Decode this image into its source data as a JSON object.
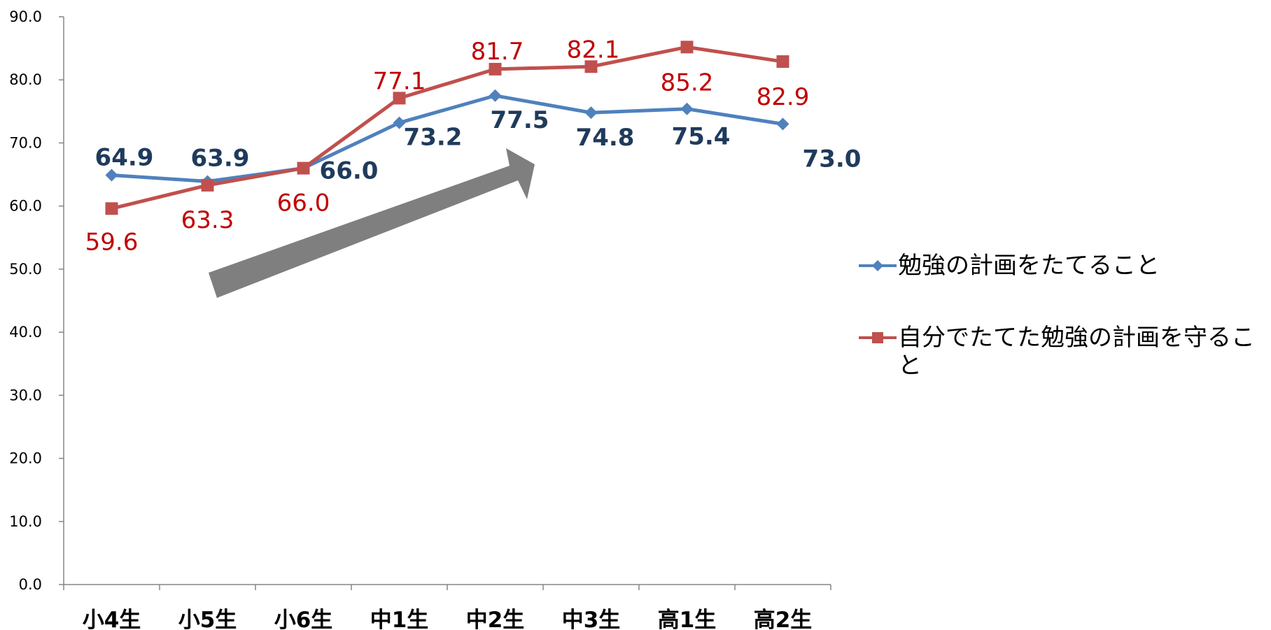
{
  "chart_data": {
    "type": "line",
    "categories": [
      "小4生",
      "小5生",
      "小6生",
      "中1生",
      "中2生",
      "中3生",
      "高1生",
      "高2生"
    ],
    "ylim": [
      0,
      90
    ],
    "yticks": [
      "0.0",
      "10.0",
      "20.0",
      "30.0",
      "40.0",
      "50.0",
      "60.0",
      "70.0",
      "80.0",
      "90.0"
    ],
    "grid": false,
    "legend_position": "right",
    "series": [
      {
        "name": "勉強の計画をたてること",
        "color": "#4F81BD",
        "label_color": "#1F3B5C",
        "marker": "diamond",
        "values": [
          64.9,
          63.9,
          66.0,
          73.2,
          77.5,
          74.8,
          75.4,
          73.0
        ],
        "labels": [
          "64.9",
          "63.9",
          "66.0",
          "73.2",
          "77.5",
          "74.8",
          "75.4",
          "73.0"
        ]
      },
      {
        "name": "自分でたてた勉強の計画を守ること",
        "color": "#C0504D",
        "label_color": "#C00000",
        "marker": "square",
        "values": [
          59.6,
          63.3,
          66.0,
          77.1,
          81.7,
          82.1,
          85.2,
          82.9
        ],
        "labels": [
          "59.6",
          "63.3",
          "66.0",
          "77.1",
          "81.7",
          "82.1",
          "85.2",
          "82.9"
        ]
      }
    ],
    "arrow_color": "#7F7F7F"
  }
}
